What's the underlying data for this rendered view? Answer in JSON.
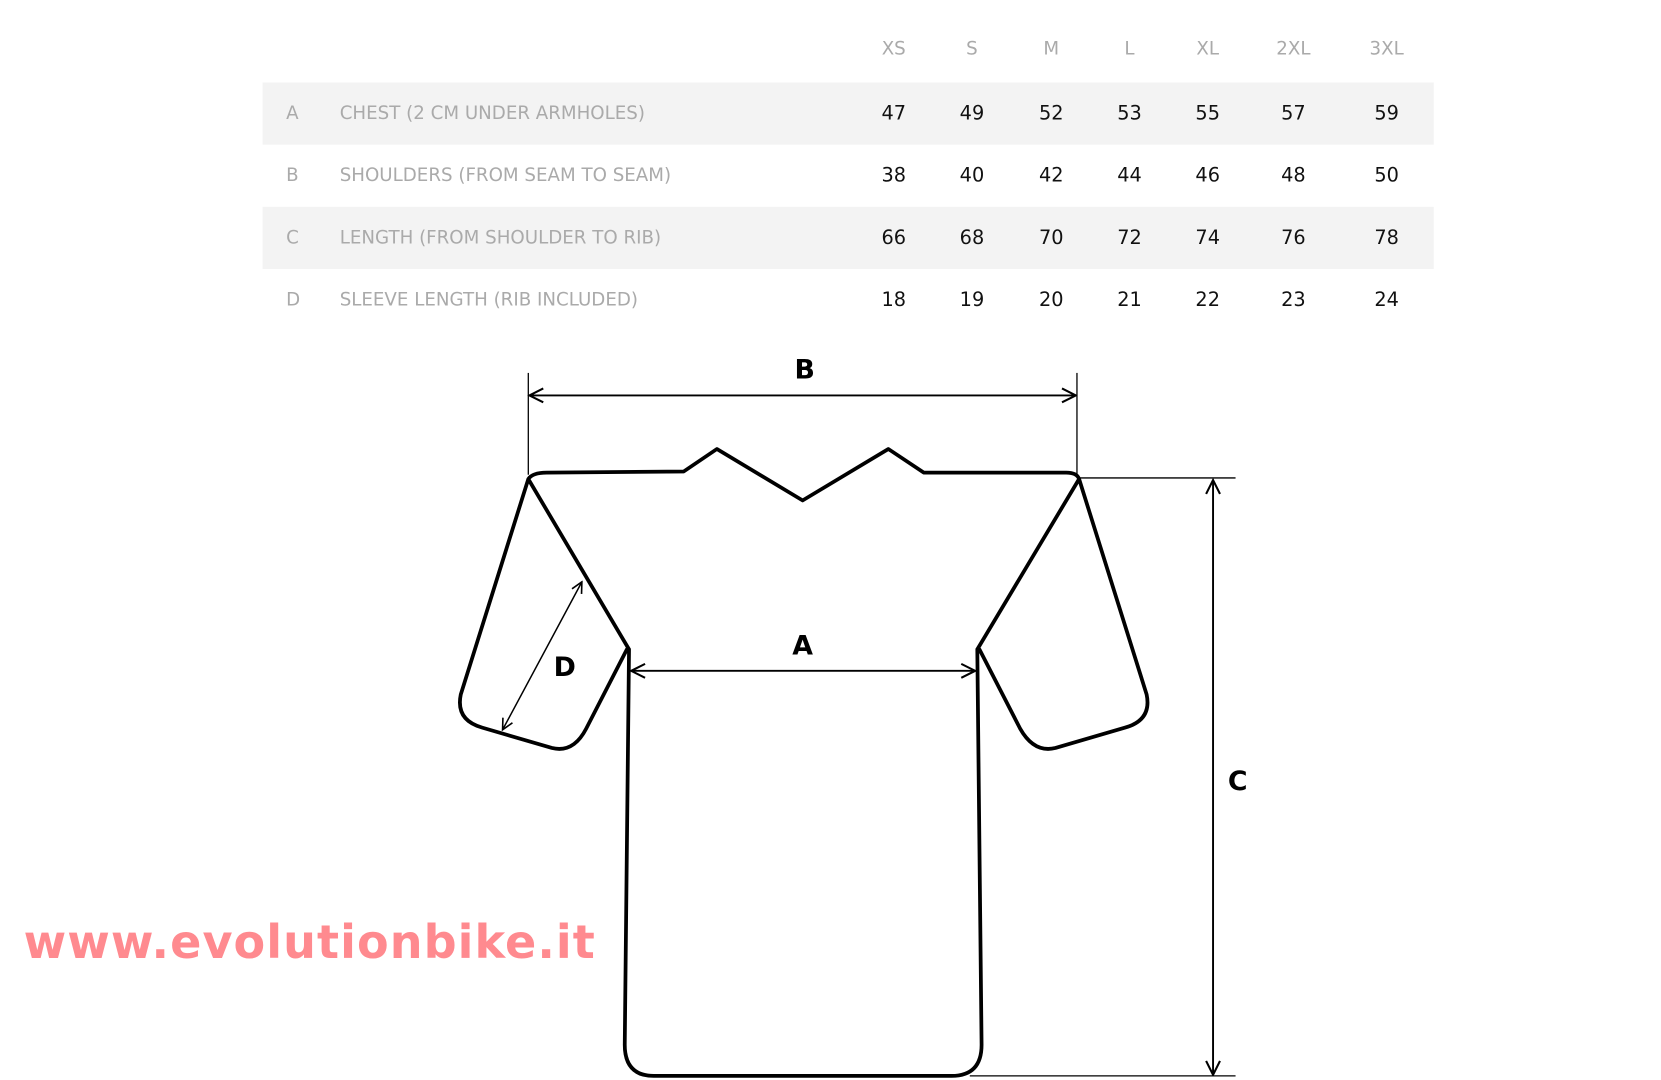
{
  "sizes": [
    "XS",
    "S",
    "M",
    "L",
    "XL",
    "2XL",
    "3XL"
  ],
  "rows": [
    {
      "letter": "A",
      "label": "CHEST (2 CM UNDER ARMHOLES)",
      "values": [
        "47",
        "49",
        "52",
        "53",
        "55",
        "57",
        "59"
      ]
    },
    {
      "letter": "B",
      "label": "SHOULDERS (FROM SEAM TO SEAM)",
      "values": [
        "38",
        "40",
        "42",
        "44",
        "46",
        "48",
        "50"
      ]
    },
    {
      "letter": "C",
      "label": "LENGTH (FROM SHOULDER TO RIB)",
      "values": [
        "66",
        "68",
        "70",
        "72",
        "74",
        "76",
        "78"
      ]
    },
    {
      "letter": "D",
      "label": "SLEEVE LENGTH (RIB INCLUDED)",
      "values": [
        "18",
        "19",
        "20",
        "21",
        "22",
        "23",
        "24"
      ]
    }
  ],
  "diagram": {
    "label_a": "A",
    "label_b": "B",
    "label_c": "C",
    "label_d": "D"
  },
  "watermark": "www.evolutionbike.it"
}
